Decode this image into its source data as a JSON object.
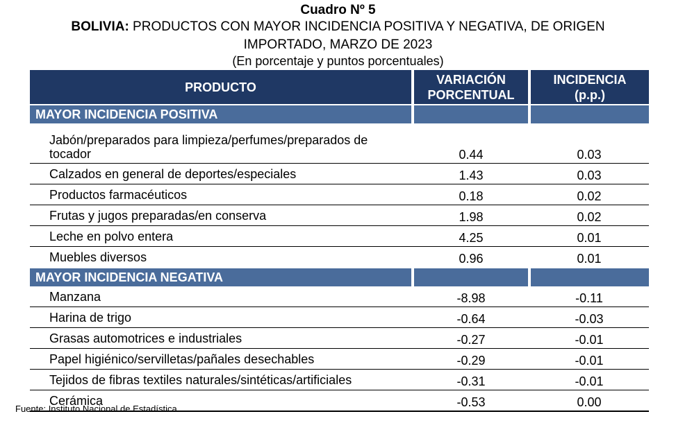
{
  "title": {
    "line1": "Cuadro Nº 5",
    "line2_bold": "BOLIVIA:",
    "line2_rest": " PRODUCTOS CON MAYOR INCIDENCIA POSITIVA Y NEGATIVA, DE ORIGEN",
    "line3": "IMPORTADO, MARZO DE 2023",
    "line4": "(En porcentaje y puntos porcentuales)"
  },
  "table": {
    "headers": {
      "producto": "PRODUCTO",
      "variacion_1": "VARIACIÓN",
      "variacion_2": "PORCENTUAL",
      "incidencia_1": "INCIDENCIA",
      "incidencia_2": "(p.p.)"
    },
    "positive": {
      "label": "MAYOR INCIDENCIA POSITIVA",
      "rows": [
        {
          "product": "Jabón/preparados para limpieza/perfumes/preparados de tocador",
          "variation": "0.44",
          "incidence": "0.03"
        },
        {
          "product": "Calzados en general de deportes/especiales",
          "variation": "1.43",
          "incidence": "0.03"
        },
        {
          "product": "Productos farmacéuticos",
          "variation": "0.18",
          "incidence": "0.02"
        },
        {
          "product": "Frutas y jugos preparadas/en conserva",
          "variation": "1.98",
          "incidence": "0.02"
        },
        {
          "product": "Leche en polvo entera",
          "variation": "4.25",
          "incidence": "0.01"
        },
        {
          "product": "Muebles diversos",
          "variation": "0.96",
          "incidence": "0.01"
        }
      ]
    },
    "negative": {
      "label": "MAYOR INCIDENCIA NEGATIVA",
      "rows": [
        {
          "product": "Manzana",
          "variation": "-8.98",
          "incidence": "-0.11"
        },
        {
          "product": "Harina de trigo",
          "variation": "-0.64",
          "incidence": "-0.03"
        },
        {
          "product": "Grasas automotrices e industriales",
          "variation": "-0.27",
          "incidence": "-0.01"
        },
        {
          "product": "Papel higiénico/servilletas/pañales desechables",
          "variation": "-0.29",
          "incidence": "-0.01"
        },
        {
          "product": "Tejidos de fibras textiles naturales/sintéticas/artificiales",
          "variation": "-0.31",
          "incidence": "-0.01"
        },
        {
          "product": "Cerámica",
          "variation": "-0.53",
          "incidence": "0.00"
        }
      ]
    }
  },
  "source": "Fuente: Instituto Nacional de Estadística",
  "colors": {
    "header_bg": "#1f3864",
    "section_bg": "#4a6c9b"
  }
}
